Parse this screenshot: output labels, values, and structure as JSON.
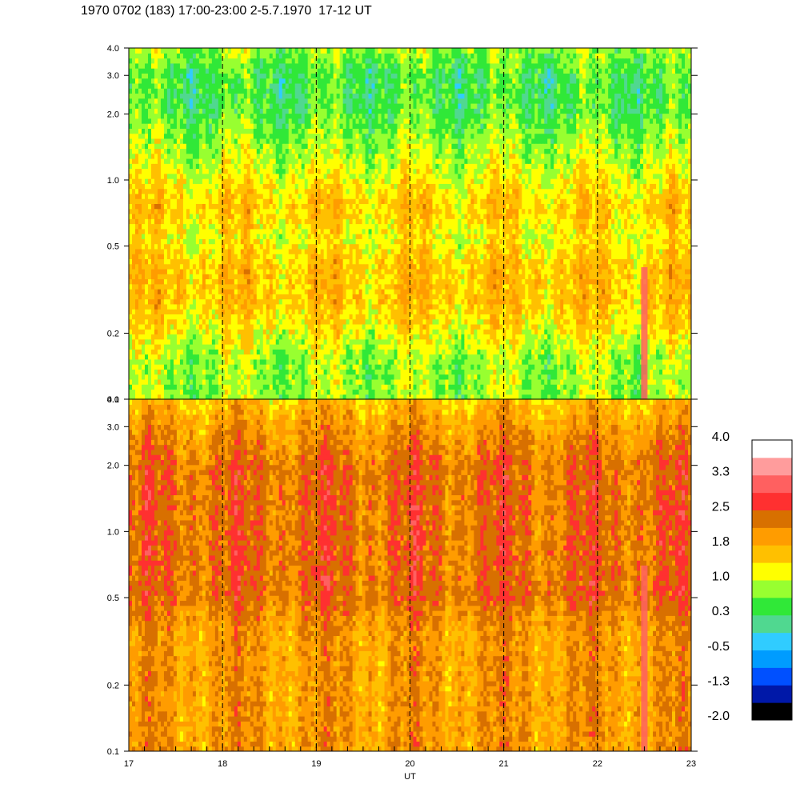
{
  "title": "1970 0702 (183) 17:00-23:00 2-5.7.1970  17-12 UT",
  "chart_data": {
    "type": "heatmap",
    "panels": [
      {
        "name": "upper",
        "y_scale": "log",
        "ylim": [
          0.1,
          4.0
        ],
        "y_ticks": [
          "0.1",
          "0.2",
          "0.5",
          "1.0",
          "2.0",
          "3.0",
          "4.0"
        ],
        "y_tick_values": [
          0.1,
          0.2,
          0.5,
          1.0,
          2.0,
          3.0,
          4.0
        ],
        "profile": [
          {
            "y": 0.1,
            "level": 7
          },
          {
            "y": 0.15,
            "level": 7
          },
          {
            "y": 0.2,
            "level": 8
          },
          {
            "y": 0.28,
            "level": 9
          },
          {
            "y": 0.4,
            "level": 9
          },
          {
            "y": 0.55,
            "level": 8
          },
          {
            "y": 0.75,
            "level": 9
          },
          {
            "y": 1.0,
            "level": 8
          },
          {
            "y": 1.5,
            "level": 7
          },
          {
            "y": 2.2,
            "level": 6
          },
          {
            "y": 3.0,
            "level": 6
          },
          {
            "y": 4.0,
            "level": 7
          }
        ]
      },
      {
        "name": "lower",
        "y_scale": "log",
        "ylim": [
          0.1,
          4.0
        ],
        "y_ticks": [
          "0.1",
          "0.2",
          "0.5",
          "1.0",
          "2.0",
          "3.0",
          "4.0"
        ],
        "y_tick_values": [
          0.1,
          0.2,
          0.5,
          1.0,
          2.0,
          3.0,
          4.0
        ],
        "profile": [
          {
            "y": 0.1,
            "level": 10
          },
          {
            "y": 0.2,
            "level": 10
          },
          {
            "y": 0.35,
            "level": 10
          },
          {
            "y": 0.5,
            "level": 11
          },
          {
            "y": 1.0,
            "level": 11
          },
          {
            "y": 2.0,
            "level": 11
          },
          {
            "y": 3.0,
            "level": 10
          },
          {
            "y": 4.0,
            "level": 9
          }
        ]
      }
    ],
    "x_label": "UT",
    "xlim": [
      17,
      23
    ],
    "x_ticks": [
      "17",
      "18",
      "19",
      "20",
      "21",
      "22",
      "23"
    ],
    "x_tick_values": [
      17,
      18,
      19,
      20,
      21,
      22,
      23
    ],
    "dashed_hours": [
      18,
      19,
      20,
      21,
      22
    ],
    "events": [
      {
        "x": 22.5,
        "level": 13
      }
    ],
    "colorbar": {
      "range": [
        -2.0,
        4.0
      ],
      "labels": [
        "4.0",
        "3.3",
        "2.5",
        "1.8",
        "1.0",
        "0.3",
        "-0.5",
        "-1.3",
        "-2.0"
      ],
      "colors": [
        "#000000",
        "#0018a8",
        "#0050ff",
        "#009cff",
        "#30ccff",
        "#50d890",
        "#30e838",
        "#98ff30",
        "#ffff00",
        "#ffc000",
        "#ff9c00",
        "#d87000",
        "#ff3030",
        "#ff6060",
        "#ff9c9c",
        "#ffffff"
      ]
    }
  }
}
